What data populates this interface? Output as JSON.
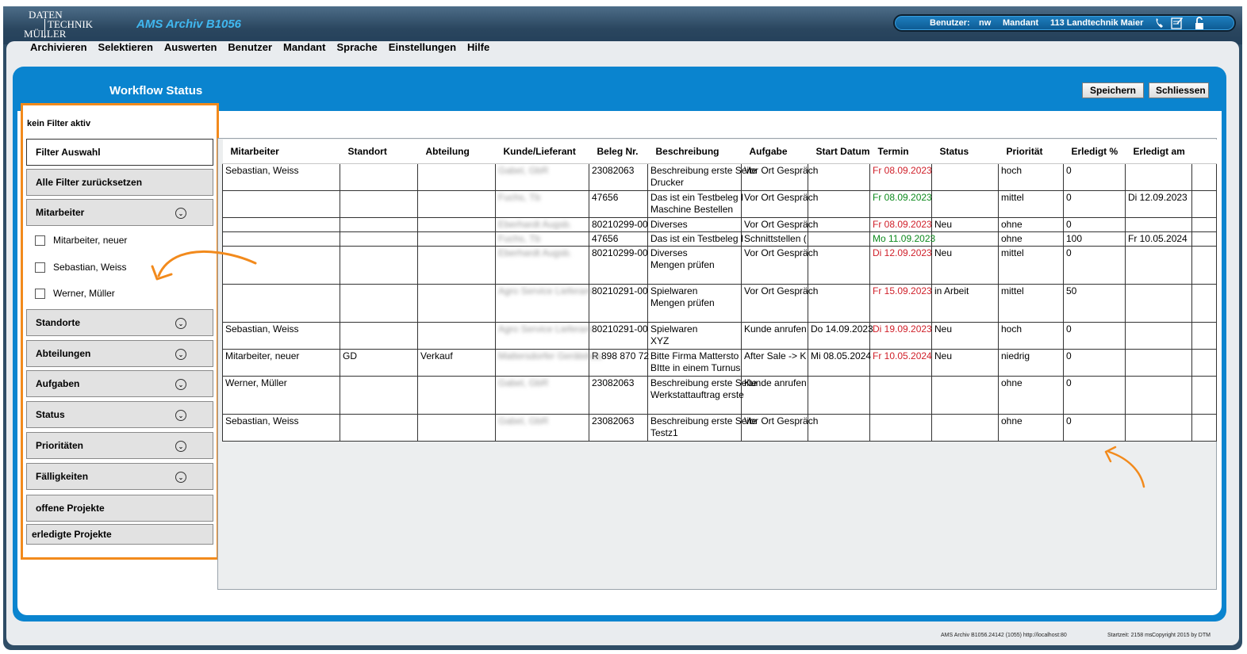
{
  "app": {
    "logo": {
      "line1": "DATEN",
      "line2": "TECHNIK",
      "line3": "MÜLLER"
    },
    "title": "AMS Archiv B1056",
    "user": {
      "label_user": "Benutzer:",
      "user": "nw",
      "label_mandant": "Mandant",
      "mandant": "113 Landtechnik Maier"
    }
  },
  "menu": [
    "Archivieren",
    "Selektieren",
    "Auswerten",
    "Benutzer",
    "Mandant",
    "Sprache",
    "Einstellungen",
    "Hilfe"
  ],
  "panel": {
    "title": "Workflow Status",
    "save": "Speichern",
    "close": "Schliessen"
  },
  "filter": {
    "status": "kein Filter aktiv",
    "select": "Filter Auswahl",
    "reset": "Alle Filter zurücksetzen",
    "mitarbeiter": "Mitarbeiter",
    "employees": [
      "Mitarbeiter, neuer",
      "Sebastian, Weiss",
      "Werner, Müller"
    ],
    "standorte": "Standorte",
    "abteilungen": "Abteilungen",
    "aufgaben": "Aufgaben",
    "status_label": "Status",
    "prioritaeten": "Prioritäten",
    "faelligkeiten": "Fälligkeiten",
    "offen": "offene Projekte",
    "erledigt": "erledigte Projekte"
  },
  "grid": {
    "columns": [
      "Mitarbeiter",
      "Standort",
      "Abteilung",
      "Kunde/Lieferant",
      "Beleg Nr.",
      "Beschreibung",
      "Aufgabe",
      "Start Datum",
      "Termin",
      "Status",
      "Priorität",
      "Erledigt %",
      "Erledigt am"
    ],
    "rows": [
      {
        "mitarbeiter": "Sebastian, Weiss",
        "standort": "",
        "abteilung": "",
        "kunde": "Gabel, GbR",
        "beleg": "23082063",
        "beschreibung": [
          "Beschreibung erste Seite",
          "Drucker"
        ],
        "aufgabe": "Vor Ort Gespräch",
        "start": "",
        "termin": "Fr 08.09.2023",
        "termin_color": "red",
        "status": "",
        "prio": "hoch",
        "erledigt": "0",
        "erledigt_am": ""
      },
      {
        "mitarbeiter": "",
        "standort": "",
        "abteilung": "",
        "kunde": "Fuchs, Tb",
        "beleg": "47656",
        "beschreibung": [
          "Das ist ein Testbeleg I",
          "Maschine Bestellen"
        ],
        "aufgabe": "Vor Ort Gespräch",
        "start": "",
        "termin": "Fr 08.09.2023",
        "termin_color": "green",
        "status": "",
        "prio": "mittel",
        "erledigt": "0",
        "erledigt_am": "Di 12.09.2023"
      },
      {
        "mitarbeiter": "",
        "standort": "",
        "abteilung": "",
        "kunde": "Eberhardt Augsb.",
        "beleg": "80210299-00",
        "beschreibung": [
          "Diverses"
        ],
        "aufgabe": "Vor Ort Gespräch",
        "start": "",
        "termin": "Fr 08.09.2023",
        "termin_color": "red",
        "status": "Neu",
        "prio": "ohne",
        "erledigt": "0",
        "erledigt_am": ""
      },
      {
        "mitarbeiter": "",
        "standort": "",
        "abteilung": "",
        "kunde": "Fuchs, Tb",
        "beleg": "47656",
        "beschreibung": [
          "Das ist ein Testbeleg I"
        ],
        "aufgabe": "Schnittstellen (",
        "start": "",
        "termin": "Mo 11.09.2023",
        "termin_color": "green",
        "status": "",
        "prio": "ohne",
        "erledigt": "100",
        "erledigt_am": "Fr 10.05.2024"
      },
      {
        "mitarbeiter": "",
        "standort": "",
        "abteilung": "",
        "kunde": "Eberhardt Augsb.",
        "beleg": "80210299-00",
        "beschreibung": [
          "Diverses",
          "Mengen prüfen"
        ],
        "aufgabe": "Vor Ort Gespräch",
        "start": "",
        "termin": "Di 12.09.2023",
        "termin_color": "red",
        "status": "Neu",
        "prio": "mittel",
        "erledigt": "0",
        "erledigt_am": ""
      },
      {
        "mitarbeiter": "",
        "standort": "",
        "abteilung": "",
        "kunde": "Agro Service Lieferant",
        "beleg": "80210291-00",
        "beschreibung": [
          "Spielwaren",
          "Mengen prüfen"
        ],
        "aufgabe": "Vor Ort Gespräch",
        "start": "",
        "termin": "Fr 15.09.2023",
        "termin_color": "red",
        "status": "in Arbeit",
        "prio": "mittel",
        "erledigt": "50",
        "erledigt_am": ""
      },
      {
        "mitarbeiter": "Sebastian, Weiss",
        "standort": "",
        "abteilung": "",
        "kunde": "Agro Service Lieferant",
        "beleg": "80210291-00",
        "beschreibung": [
          "Spielwaren",
          "XYZ"
        ],
        "aufgabe": "Kunde anrufen",
        "start": "Do 14.09.2023",
        "termin": "Di 19.09.2023",
        "termin_color": "red",
        "status": "Neu",
        "prio": "hoch",
        "erledigt": "0",
        "erledigt_am": ""
      },
      {
        "mitarbeiter": "Mitarbeiter, neuer",
        "standort": "GD",
        "abteilung": "Verkauf",
        "kunde": "Mattersdorfer Gerätebau",
        "beleg": "R 898 870 72",
        "beschreibung": [
          "Bitte Firma Mattersto",
          "BItte in einem Turnus"
        ],
        "aufgabe": "After Sale -> K",
        "start": "Mi 08.05.2024",
        "termin": "Fr 10.05.2024",
        "termin_color": "red",
        "status": "Neu",
        "prio": "niedrig",
        "erledigt": "0",
        "erledigt_am": ""
      },
      {
        "mitarbeiter": "Werner, Müller",
        "standort": "",
        "abteilung": "",
        "kunde": "Gabel, GbR",
        "beleg": "23082063",
        "beschreibung": [
          "Beschreibung erste Seite",
          "Werkstattauftrag erste"
        ],
        "aufgabe": "Kunde anrufen",
        "start": "",
        "termin": "",
        "termin_color": "",
        "status": "",
        "prio": "ohne",
        "erledigt": "0",
        "erledigt_am": ""
      },
      {
        "mitarbeiter": "Sebastian, Weiss",
        "standort": "",
        "abteilung": "",
        "kunde": "Gabel, GbR",
        "beleg": "23082063",
        "beschreibung": [
          "Beschreibung erste Seite",
          "Testz1"
        ],
        "aufgabe": "Vor Ort Gespräch",
        "start": "",
        "termin": "",
        "termin_color": "",
        "status": "",
        "prio": "ohne",
        "erledigt": "0",
        "erledigt_am": ""
      }
    ]
  },
  "footer": {
    "version": "AMS Archiv B1056.24142 (1055) http://localhost:80",
    "startzeit": "Startzeit: 2158 ms",
    "copyright": "Copyright 2015 by DTM"
  },
  "colors": {
    "accent": "#0a84cf",
    "filter_outline": "#f28a1c",
    "overdue": "#d0202a",
    "ontime": "#0d8a1d"
  }
}
